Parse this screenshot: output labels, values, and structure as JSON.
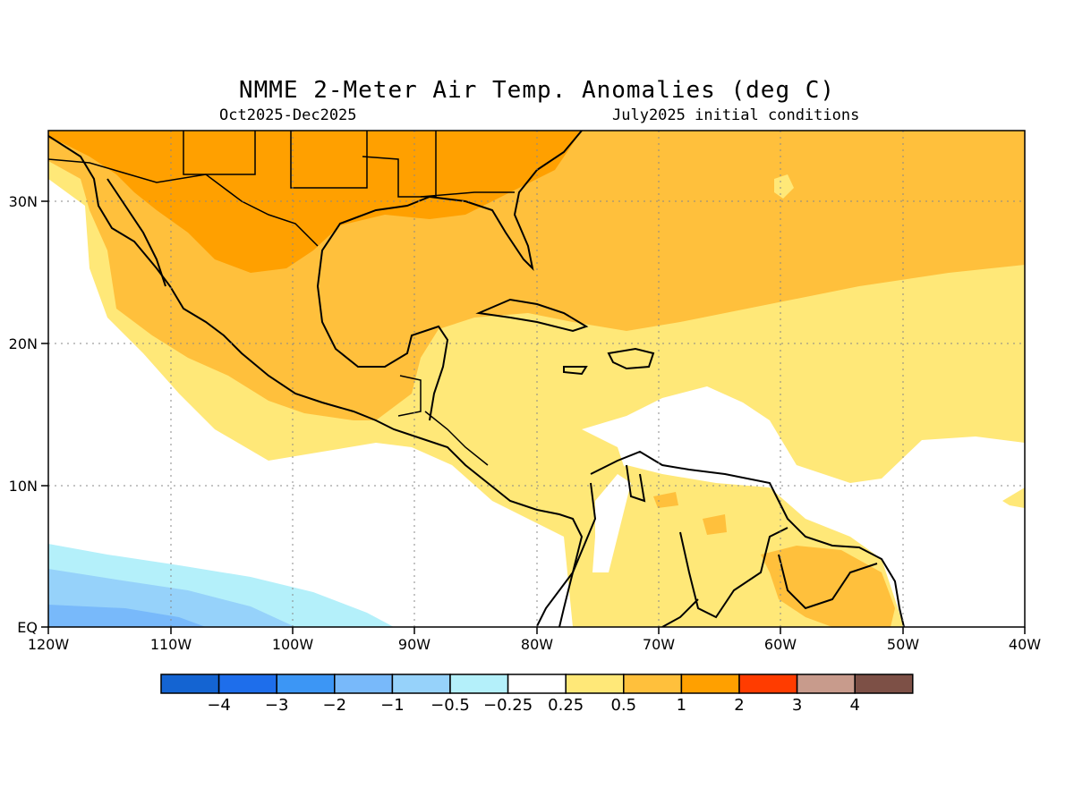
{
  "title": "NMME 2-Meter Air Temp. Anomalies (deg C)",
  "period": "Oct2025-Dec2025",
  "init": "July2025 initial conditions",
  "lon_ticks": [
    "120W",
    "110W",
    "100W",
    "90W",
    "80W",
    "70W",
    "60W",
    "50W",
    "40W"
  ],
  "lat_ticks": [
    "30N",
    "20N",
    "10N",
    "EQ"
  ],
  "colorbar": {
    "colors": [
      "#1464d2",
      "#1e6eeb",
      "#3c96f5",
      "#78b9fa",
      "#96d2fa",
      "#b4f0fa",
      "#ffffff",
      "#ffe878",
      "#ffc03c",
      "#ffa000",
      "#ff3c00",
      "#c89b8c",
      "#7d5046"
    ],
    "labels": [
      "-4",
      "-3",
      "-2",
      "-1",
      "-0.5",
      "-0.25",
      "0.25",
      "0.5",
      "1",
      "2",
      "3",
      "4"
    ]
  },
  "chart_data": {
    "type": "heatmap",
    "variable": "2-Meter Air Temp. Anomalies (deg C)",
    "lon_range": [
      -120,
      -40
    ],
    "lat_range": [
      0,
      35
    ],
    "levels": [
      -4,
      -3,
      -2,
      -1,
      -0.5,
      -0.25,
      0.25,
      0.5,
      1,
      2,
      3,
      4
    ]
  }
}
